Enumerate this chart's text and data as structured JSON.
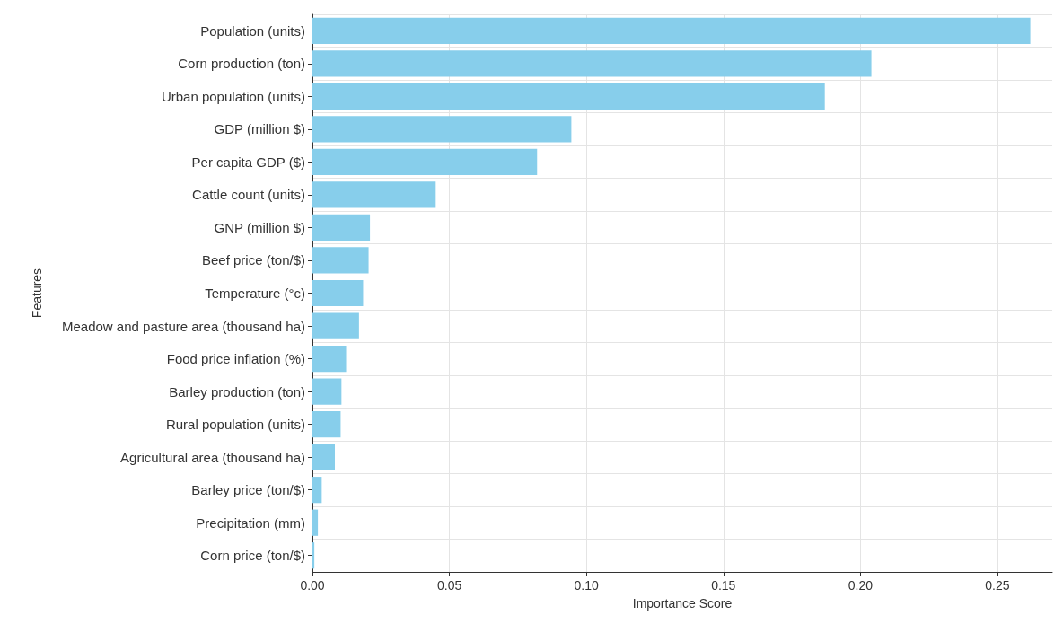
{
  "chart_data": {
    "type": "bar",
    "orientation": "horizontal",
    "xlabel": "Importance Score",
    "ylabel": "Features",
    "categories": [
      "Population (units)",
      "Corn production (ton)",
      "Urban population (units)",
      "GDP (million $)",
      "Per capita GDP ($)",
      "Cattle count (units)",
      "GNP (million $)",
      "Beef price (ton/$)",
      "Temperature (°c)",
      "Meadow and pasture area (thousand ha)",
      "Food price inflation (%)",
      "Barley production (ton)",
      "Rural population (units)",
      "Agricultural area (thousand ha)",
      "Barley price (ton/$)",
      "Precipitation (mm)",
      "Corn price (ton/$)"
    ],
    "values": [
      0.262,
      0.204,
      0.187,
      0.0945,
      0.082,
      0.045,
      0.021,
      0.0205,
      0.0185,
      0.017,
      0.0123,
      0.0106,
      0.0103,
      0.0082,
      0.0034,
      0.002,
      0.0007
    ],
    "color": "#87ceeb",
    "xlim": [
      0,
      0.27
    ],
    "xticks": [
      {
        "value": 0,
        "label": "0.00"
      },
      {
        "value": 0.05,
        "label": "0.05"
      },
      {
        "value": 0.1,
        "label": "0.10"
      },
      {
        "value": 0.15,
        "label": "0.15"
      },
      {
        "value": 0.2,
        "label": "0.20"
      },
      {
        "value": 0.25,
        "label": "0.25"
      }
    ],
    "grid": true
  }
}
